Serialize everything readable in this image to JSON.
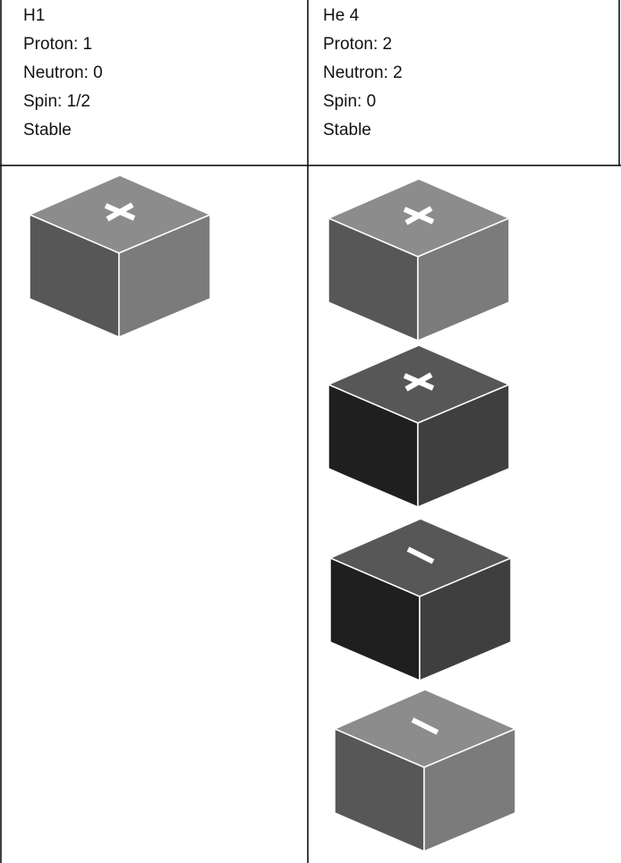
{
  "table": {
    "columns": [
      {
        "lines": [
          "H1",
          "Proton: 1",
          "Neutron: 0",
          "Spin: 1/2",
          "Stable"
        ]
      },
      {
        "lines": [
          "He 4",
          "Proton: 2",
          "Neutron: 2",
          "Spin: 0",
          "Stable"
        ]
      }
    ]
  }
}
